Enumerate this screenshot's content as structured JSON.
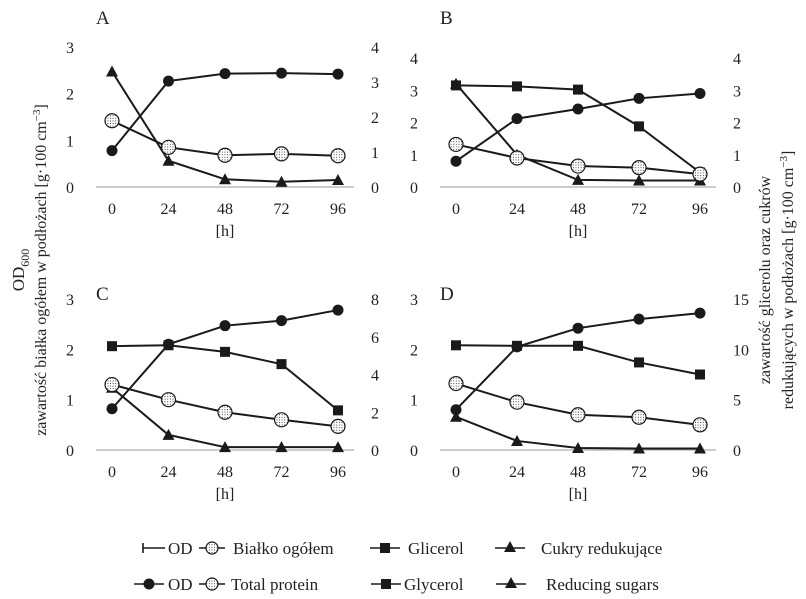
{
  "axis_titles": {
    "left_main": "OD",
    "left_sub": "600",
    "left_second": "zawartość białka ogółem w podłożach [g·100 cm",
    "left_second_sup": "−3",
    "left_second_close": "]",
    "right_first": "zawartość glicerolu oraz cukrów",
    "right_second": "redukujących w podłożach [g·100 cm",
    "right_second_sup": "−3",
    "right_second_close": "]"
  },
  "legend": {
    "pl": {
      "od": "OD",
      "protein": "Białko ogółem",
      "glycerol": "Glicerol",
      "sugars": "Cukry redukujące"
    },
    "en": {
      "od": "OD",
      "protein": "Total protein",
      "glycerol": "Glycerol",
      "sugars": "Reducing sugars"
    }
  },
  "colors": {
    "line": "#1a1a1a",
    "marker_fill": "#1a1a1a",
    "protein_fill": "#ffffff"
  },
  "chart_data": [
    {
      "type": "line",
      "panel": "A",
      "xlabel": "[h]",
      "categories": [
        "0",
        "24",
        "48",
        "72",
        "96"
      ],
      "ylim_left": [
        0,
        3
      ],
      "yticks_left": [
        0,
        1,
        2,
        3
      ],
      "ylim_right": [
        0,
        4
      ],
      "yticks_right": [
        0,
        1,
        2,
        3,
        4
      ],
      "series": [
        {
          "key": "od",
          "axis": "left",
          "marker": "circle",
          "values": [
            0.78,
            2.27,
            2.43,
            2.44,
            2.42
          ]
        },
        {
          "key": "protein",
          "axis": "left",
          "marker": "circle-dotted",
          "values": [
            1.42,
            0.85,
            0.68,
            0.71,
            0.67
          ]
        },
        {
          "key": "sugars",
          "axis": "right",
          "marker": "triangle",
          "values": [
            3.3,
            0.75,
            0.22,
            0.15,
            0.2
          ]
        }
      ]
    },
    {
      "type": "line",
      "panel": "B",
      "xlabel": "[h]",
      "categories": [
        "0",
        "24",
        "48",
        "72",
        "96"
      ],
      "ylim_left": [
        0,
        4
      ],
      "yticks_left": [
        0,
        1,
        2,
        3,
        4
      ],
      "ylim_right": [
        0,
        4
      ],
      "yticks_right": [
        0,
        1,
        2,
        3,
        4
      ],
      "series": [
        {
          "key": "od",
          "axis": "left",
          "marker": "circle",
          "values": [
            0.8,
            2.12,
            2.42,
            2.75,
            2.9
          ]
        },
        {
          "key": "protein",
          "axis": "left",
          "marker": "circle-dotted",
          "values": [
            1.32,
            0.9,
            0.65,
            0.6,
            0.4
          ]
        },
        {
          "key": "glycerol",
          "axis": "right",
          "marker": "square",
          "values": [
            3.15,
            3.12,
            3.02,
            1.88,
            0.45
          ]
        },
        {
          "key": "sugars",
          "axis": "right",
          "marker": "triangle",
          "values": [
            3.2,
            1.0,
            0.22,
            0.2,
            0.2
          ]
        }
      ]
    },
    {
      "type": "line",
      "panel": "C",
      "xlabel": "[h]",
      "categories": [
        "0",
        "24",
        "48",
        "72",
        "96"
      ],
      "ylim_left": [
        0,
        3
      ],
      "yticks_left": [
        0,
        1,
        2,
        3
      ],
      "ylim_right": [
        0,
        8
      ],
      "yticks_right": [
        0,
        2,
        4,
        6,
        8
      ],
      "series": [
        {
          "key": "od",
          "axis": "left",
          "marker": "circle",
          "values": [
            0.82,
            2.1,
            2.47,
            2.57,
            2.78
          ]
        },
        {
          "key": "protein",
          "axis": "left",
          "marker": "circle-dotted",
          "values": [
            1.3,
            1.0,
            0.75,
            0.6,
            0.47
          ]
        },
        {
          "key": "glycerol",
          "axis": "right",
          "marker": "square",
          "values": [
            5.5,
            5.55,
            5.2,
            4.55,
            2.1
          ]
        },
        {
          "key": "sugars",
          "axis": "right",
          "marker": "triangle",
          "values": [
            3.3,
            0.8,
            0.15,
            0.15,
            0.15
          ]
        }
      ]
    },
    {
      "type": "line",
      "panel": "D",
      "xlabel": "[h]",
      "categories": [
        "0",
        "24",
        "48",
        "72",
        "96"
      ],
      "ylim_left": [
        0,
        3
      ],
      "yticks_left": [
        0,
        1,
        2,
        3
      ],
      "ylim_right": [
        0,
        15
      ],
      "yticks_right": [
        0,
        5,
        10,
        15
      ],
      "series": [
        {
          "key": "od",
          "axis": "left",
          "marker": "circle",
          "values": [
            0.8,
            2.05,
            2.42,
            2.6,
            2.72
          ]
        },
        {
          "key": "protein",
          "axis": "left",
          "marker": "circle-dotted",
          "values": [
            1.32,
            0.95,
            0.7,
            0.65,
            0.5
          ]
        },
        {
          "key": "glycerol",
          "axis": "right",
          "marker": "square",
          "values": [
            10.4,
            10.35,
            10.35,
            8.7,
            7.5
          ]
        },
        {
          "key": "sugars",
          "axis": "right",
          "marker": "triangle",
          "values": [
            3.3,
            0.9,
            0.2,
            0.15,
            0.15
          ]
        }
      ]
    }
  ]
}
